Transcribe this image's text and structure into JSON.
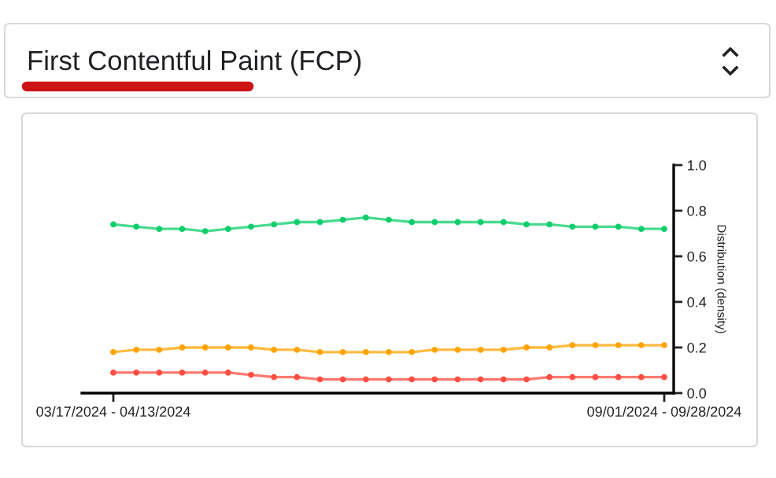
{
  "chart_data": {
    "type": "line",
    "title": "First Contentful Paint (FCP)",
    "y2label": "Distribution (density)",
    "categories": [
      "03/17/2024 - 04/13/2024",
      null,
      null,
      null,
      null,
      null,
      null,
      null,
      null,
      null,
      null,
      null,
      null,
      null,
      null,
      null,
      null,
      null,
      null,
      null,
      null,
      null,
      null,
      null,
      "09/01/2024 - 09/28/2024"
    ],
    "series": [
      {
        "color": "#0cce6b",
        "axis": "y2",
        "values": [
          0.74,
          0.73,
          0.72,
          0.72,
          0.71,
          0.72,
          0.73,
          0.74,
          0.75,
          0.75,
          0.76,
          0.77,
          0.76,
          0.75,
          0.75,
          0.75,
          0.75,
          0.75,
          0.74,
          0.74,
          0.73,
          0.73,
          0.73,
          0.72,
          0.72
        ]
      },
      {
        "color": "#ffa400",
        "axis": "y2",
        "values": [
          0.18,
          0.19,
          0.19,
          0.2,
          0.2,
          0.2,
          0.2,
          0.19,
          0.19,
          0.18,
          0.18,
          0.18,
          0.18,
          0.18,
          0.19,
          0.19,
          0.19,
          0.19,
          0.2,
          0.2,
          0.21,
          0.21,
          0.21,
          0.21,
          0.21
        ]
      },
      {
        "color": "#ff4e42",
        "axis": "y2",
        "values": [
          0.09,
          0.09,
          0.09,
          0.09,
          0.09,
          0.09,
          0.08,
          0.07,
          0.07,
          0.06,
          0.06,
          0.06,
          0.06,
          0.06,
          0.06,
          0.06,
          0.06,
          0.06,
          0.06,
          0.07,
          0.07,
          0.07,
          0.07,
          0.07,
          0.07
        ]
      }
    ],
    "y2lim": [
      0,
      1
    ],
    "y2ticks": [
      {
        "value": 0,
        "label": "0.0"
      },
      {
        "value": 0.2,
        "label": "0.2"
      },
      {
        "value": 0.4,
        "label": "0.4"
      },
      {
        "value": 0.6,
        "label": "0.6"
      },
      {
        "value": 0.8,
        "label": "0.8"
      },
      {
        "value": 1,
        "label": "1.0"
      }
    ],
    "marker": "circle",
    "line_style": "solid",
    "grid": false,
    "legend": false
  }
}
